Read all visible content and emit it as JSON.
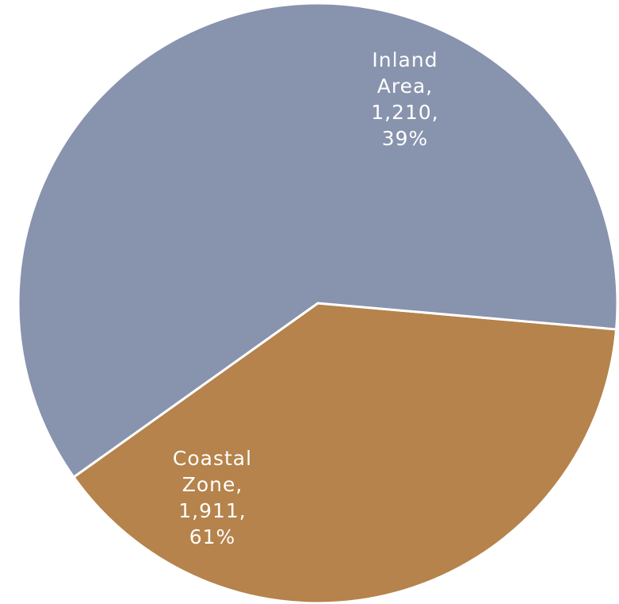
{
  "chart_data": {
    "type": "pie",
    "start_angle_deg": 95,
    "direction": "clockwise",
    "slices": [
      {
        "label": "Inland Area",
        "value": 1210,
        "percent": 39,
        "color": "#b5834b",
        "label_lines": [
          "Inland",
          "Area,",
          "1,210,",
          "39%"
        ]
      },
      {
        "label": "Coastal Zone",
        "value": 1911,
        "percent": 61,
        "color": "#8893ae",
        "label_lines": [
          "Coastal",
          "Zone,",
          "1,911,",
          "61%"
        ]
      }
    ]
  }
}
